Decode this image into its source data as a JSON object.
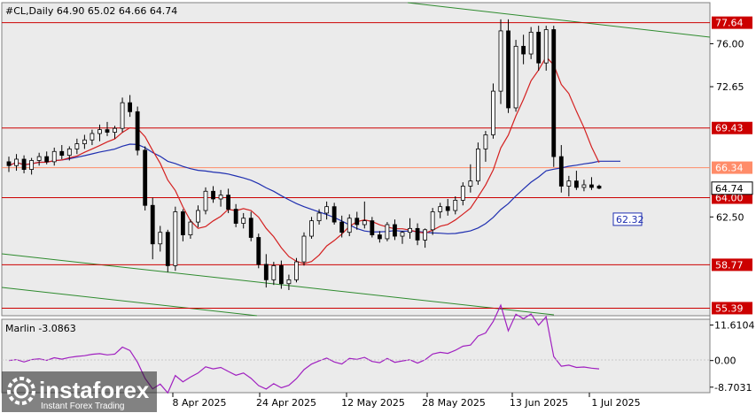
{
  "header": "#CL,Daily  64.90 65.02 64.66 64.74",
  "chart_data": [
    {
      "type": "candlestick",
      "title": "#CL,Daily",
      "ohlc_last": {
        "open": 64.9,
        "high": 65.02,
        "low": 64.66,
        "close": 64.74
      },
      "price_ticks": [
        "76.00",
        "72.65",
        "62.50"
      ],
      "x_ticks": [
        "8 Apr 2025",
        "24 Apr 2025",
        "12 May 2025",
        "28 May 2025",
        "13 Jun 2025",
        "1 Jul 2025"
      ],
      "ylim": [
        54.8,
        79.2
      ],
      "horizontal_levels": [
        {
          "value": 77.64,
          "label": "77.64",
          "color": "#cc0000"
        },
        {
          "value": 69.43,
          "label": "69.43",
          "color": "#cc0000"
        },
        {
          "value": 66.34,
          "label": "66.34",
          "color": "#ff8c69"
        },
        {
          "value": 64.0,
          "label": "64.00",
          "color": "#cc0000"
        },
        {
          "value": 58.77,
          "label": "58.77",
          "color": "#cc0000"
        },
        {
          "value": 55.39,
          "label": "55.39",
          "color": "#cc0000"
        }
      ],
      "current_price_label": "64.74",
      "ma_blue_label": "62.32",
      "candles": [
        [
          66.8,
          67.2,
          66.0,
          66.5
        ],
        [
          66.5,
          67.4,
          66.1,
          67.0
        ],
        [
          67.0,
          67.3,
          65.9,
          66.2
        ],
        [
          66.2,
          67.1,
          65.8,
          66.9
        ],
        [
          66.9,
          67.5,
          66.5,
          67.2
        ],
        [
          67.2,
          67.6,
          66.6,
          66.8
        ],
        [
          66.8,
          67.9,
          66.5,
          67.6
        ],
        [
          67.6,
          68.1,
          67.0,
          67.3
        ],
        [
          67.3,
          68.0,
          66.9,
          67.8
        ],
        [
          67.8,
          68.6,
          67.4,
          68.2
        ],
        [
          68.2,
          68.9,
          67.8,
          68.5
        ],
        [
          68.5,
          69.3,
          68.1,
          69.0
        ],
        [
          69.0,
          69.7,
          68.4,
          69.3
        ],
        [
          69.3,
          69.9,
          68.8,
          69.1
        ],
        [
          69.1,
          69.6,
          68.6,
          69.4
        ],
        [
          69.4,
          71.8,
          69.1,
          71.4
        ],
        [
          71.4,
          72.0,
          70.3,
          70.7
        ],
        [
          70.7,
          71.1,
          67.3,
          67.7
        ],
        [
          67.7,
          68.0,
          63.0,
          63.4
        ],
        [
          63.4,
          64.0,
          59.2,
          60.4
        ],
        [
          60.4,
          61.8,
          59.8,
          61.3
        ],
        [
          61.3,
          61.5,
          58.2,
          58.7
        ],
        [
          58.7,
          63.3,
          58.3,
          62.9
        ],
        [
          62.9,
          63.1,
          60.6,
          61.1
        ],
        [
          61.1,
          62.3,
          60.8,
          62.1
        ],
        [
          62.1,
          63.4,
          61.7,
          63.0
        ],
        [
          63.0,
          64.8,
          62.7,
          64.5
        ],
        [
          64.5,
          64.9,
          63.6,
          63.9
        ],
        [
          63.9,
          64.6,
          63.3,
          64.2
        ],
        [
          64.2,
          64.7,
          62.8,
          63.1
        ],
        [
          63.1,
          63.5,
          61.7,
          62.0
        ],
        [
          62.0,
          62.8,
          61.6,
          62.4
        ],
        [
          62.4,
          62.9,
          60.6,
          60.9
        ],
        [
          60.9,
          61.2,
          58.5,
          58.8
        ],
        [
          58.8,
          59.6,
          57.0,
          57.6
        ],
        [
          57.6,
          59.0,
          57.2,
          58.7
        ],
        [
          58.7,
          59.1,
          56.9,
          57.3
        ],
        [
          57.3,
          58.0,
          56.8,
          57.6
        ],
        [
          57.6,
          59.3,
          57.4,
          59.0
        ],
        [
          59.0,
          61.3,
          58.7,
          61.0
        ],
        [
          61.0,
          62.5,
          60.8,
          62.2
        ],
        [
          62.2,
          63.1,
          61.9,
          62.8
        ],
        [
          62.8,
          63.7,
          62.3,
          63.3
        ],
        [
          63.3,
          63.6,
          61.9,
          62.1
        ],
        [
          62.1,
          62.6,
          60.9,
          61.3
        ],
        [
          61.3,
          62.7,
          61.0,
          62.4
        ],
        [
          62.4,
          62.9,
          61.5,
          61.9
        ],
        [
          61.9,
          63.7,
          61.6,
          62.2
        ],
        [
          62.2,
          62.5,
          60.9,
          61.1
        ],
        [
          61.1,
          61.4,
          60.5,
          60.8
        ],
        [
          60.8,
          62.1,
          60.6,
          61.9
        ],
        [
          61.9,
          62.3,
          60.7,
          61.0
        ],
        [
          61.0,
          61.4,
          60.4,
          61.3
        ],
        [
          61.3,
          62.4,
          60.8,
          61.6
        ],
        [
          61.6,
          62.0,
          60.3,
          60.7
        ],
        [
          60.7,
          61.6,
          60.1,
          61.5
        ],
        [
          61.5,
          63.2,
          61.1,
          62.9
        ],
        [
          62.9,
          63.6,
          62.4,
          63.3
        ],
        [
          63.3,
          63.9,
          62.6,
          63.0
        ],
        [
          63.0,
          64.1,
          62.7,
          63.8
        ],
        [
          63.8,
          65.2,
          63.4,
          64.9
        ],
        [
          64.9,
          66.6,
          64.4,
          65.3
        ],
        [
          65.3,
          68.3,
          65.0,
          67.8
        ],
        [
          67.8,
          69.2,
          66.8,
          68.9
        ],
        [
          68.9,
          72.9,
          68.6,
          72.3
        ],
        [
          72.3,
          77.9,
          71.3,
          77.0
        ],
        [
          77.0,
          77.9,
          70.6,
          71.0
        ],
        [
          71.0,
          76.3,
          70.7,
          75.8
        ],
        [
          75.8,
          76.7,
          74.4,
          75.2
        ],
        [
          75.2,
          77.3,
          74.8,
          76.9
        ],
        [
          76.9,
          77.4,
          73.9,
          74.5
        ],
        [
          74.5,
          77.4,
          73.9,
          77.1
        ],
        [
          77.1,
          77.4,
          66.4,
          67.2
        ],
        [
          67.2,
          68.1,
          64.4,
          64.9
        ],
        [
          64.9,
          65.7,
          64.1,
          65.3
        ],
        [
          65.3,
          66.1,
          64.6,
          64.8
        ],
        [
          64.8,
          65.4,
          64.5,
          65.0
        ],
        [
          65.0,
          65.6,
          64.6,
          64.8
        ],
        [
          64.9,
          65.02,
          64.66,
          64.74
        ]
      ]
    },
    {
      "type": "line",
      "title": "Marlin -3.0863",
      "y_ticks": [
        "11.6104",
        "0.00",
        "-8.7031"
      ],
      "ylim": [
        -10.5,
        13.5
      ]
    }
  ],
  "watermark": {
    "brand": "instaforex",
    "tagline": "Instant Forex Trading"
  }
}
